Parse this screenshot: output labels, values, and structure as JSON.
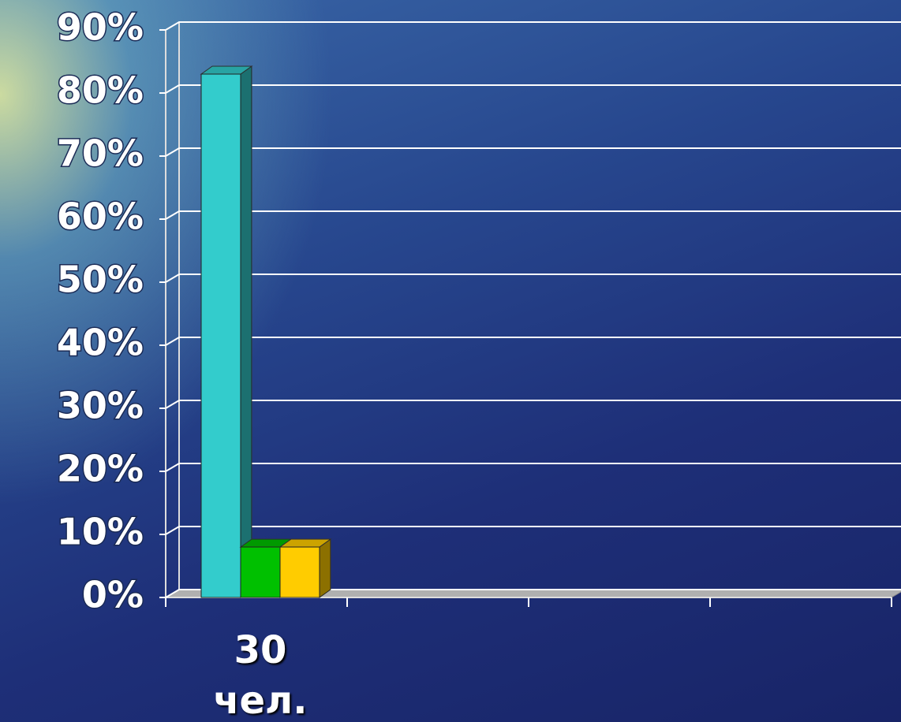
{
  "chart_data": {
    "type": "bar3d",
    "categories": [
      "30 чел.",
      null,
      null,
      null
    ],
    "series": [
      {
        "color": "#33cccc",
        "values": [
          83,
          null,
          null,
          null
        ]
      },
      {
        "color": "#00c000",
        "values": [
          8,
          null,
          null,
          null
        ]
      },
      {
        "color": "#ffcc00",
        "values": [
          8,
          null,
          null,
          null
        ]
      }
    ],
    "ylim": [
      0,
      90
    ],
    "yticks": [
      {
        "value": 0,
        "label": "0%"
      },
      {
        "value": 10,
        "label": "10%"
      },
      {
        "value": 20,
        "label": "20%"
      },
      {
        "value": 30,
        "label": "30%"
      },
      {
        "value": 40,
        "label": "40%"
      },
      {
        "value": 50,
        "label": "50%"
      },
      {
        "value": 60,
        "label": "60%"
      },
      {
        "value": 70,
        "label": "70%"
      },
      {
        "value": 80,
        "label": "80%"
      },
      {
        "value": 90,
        "label": "90%"
      }
    ],
    "grid": true
  }
}
